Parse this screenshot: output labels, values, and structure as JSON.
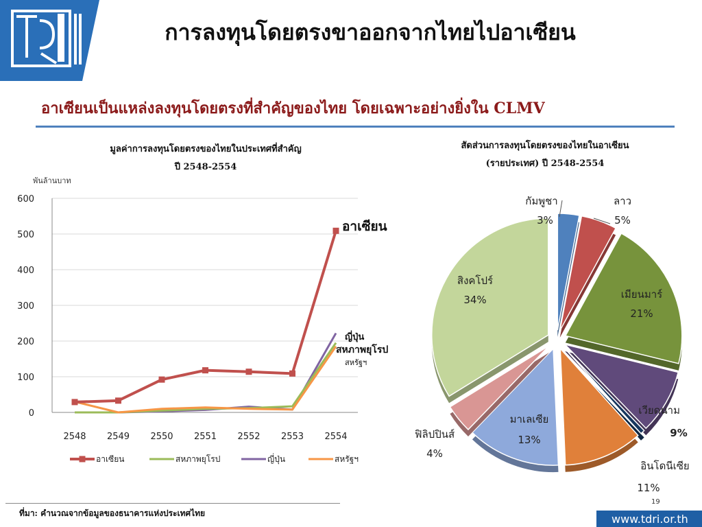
{
  "header": {
    "title": "การลงทุนโดยตรงขาออกจากไทยไปอาเซียน",
    "subtitle": "อาเซียนเป็นแหล่งลงทุนโดยตรงที่สำคัญของไทย โดยเฉพาะอย่างยิ่งใน CLMV"
  },
  "line_chart": {
    "title_line1": "มูลค่าการลงทุนโดยตรงของไทยในประเทศที่สำคัญ",
    "title_line2": "ปี 2548-2554",
    "unit": "พันล้านบาท",
    "label_asean": "อาเซียน",
    "label_japan": "ญี่ปุ่น",
    "label_eu": "สหภาพยุโรป",
    "label_us": "สหรัฐฯ"
  },
  "pie_chart": {
    "title_line1": "สัดส่วนการลงทุนโดยตรงของไทยในอาเซียน",
    "title_line2": "(รายประเทศ) ปี 2548-2554"
  },
  "footer": {
    "source": "ที่มา: คำนวณจากข้อมูลของธนาคารแห่งประเทศไทย",
    "page": "19",
    "url": "www.tdri.or.th"
  },
  "colors": {
    "asean": "#c0504d",
    "eu": "#9bbb59",
    "japan": "#8064a2",
    "us": "#f79646",
    "accent": "#1f5fa5"
  },
  "chart_data": [
    {
      "type": "line",
      "x": [
        "2548",
        "2549",
        "2550",
        "2551",
        "2552",
        "2553",
        "2554"
      ],
      "series": [
        {
          "name": "อาเซียน",
          "color": "#c0504d",
          "values": [
            29,
            33,
            92,
            118,
            114,
            109,
            509
          ]
        },
        {
          "name": "สหภาพยุโรป",
          "color": "#9bbb59",
          "values": [
            0,
            0,
            5,
            10,
            12,
            17,
            195
          ]
        },
        {
          "name": "ญี่ปุ่น",
          "color": "#8064a2",
          "values": [
            0,
            0,
            3,
            7,
            16,
            8,
            222
          ]
        },
        {
          "name": "สหรัฐฯ",
          "color": "#f79646",
          "values": [
            30,
            0,
            10,
            14,
            10,
            8,
            185
          ]
        }
      ],
      "ylim": [
        0,
        600
      ],
      "yticks": [
        0,
        100,
        200,
        300,
        400,
        500,
        600
      ],
      "grid": true,
      "legend": "bottom"
    },
    {
      "type": "pie",
      "slices": [
        {
          "label": "กัมพูชา",
          "value_label": "3%",
          "value": 3,
          "color": "#4f81bd"
        },
        {
          "label": "ลาว",
          "value_label": "5%",
          "value": 5,
          "color": "#c0504d"
        },
        {
          "label": "เมียนมาร์",
          "value_label": "21%",
          "value": 21,
          "color": "#77933c"
        },
        {
          "label": "เวียดนาม",
          "value_label": "9%",
          "value": 9,
          "color": "#604a7b"
        },
        {
          "label": "",
          "value_label": "",
          "value": 0.6,
          "color": "#17375e"
        },
        {
          "label": "อินโดนีเซีย",
          "value_label": "11%",
          "value": 11,
          "color": "#e0803a"
        },
        {
          "label": "มาเลเซีย",
          "value_label": "13%",
          "value": 13,
          "color": "#8ea9db"
        },
        {
          "label": "ฟิลิปปินส์",
          "value_label": "4%",
          "value": 4,
          "color": "#d99694"
        },
        {
          "label": "สิงคโปร์",
          "value_label": "34%",
          "value": 34,
          "color": "#c3d69b"
        }
      ]
    }
  ]
}
